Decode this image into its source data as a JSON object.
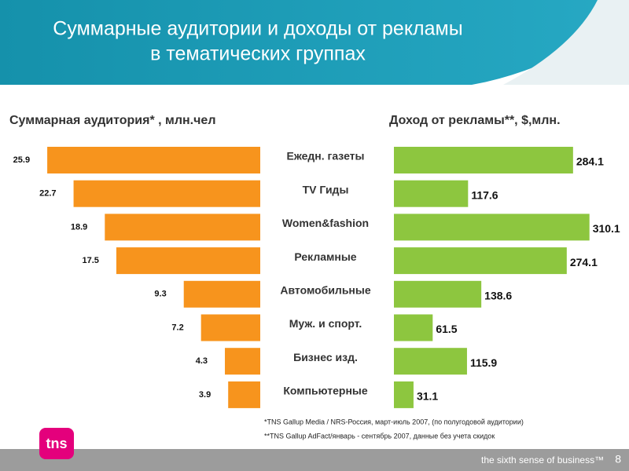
{
  "title": [
    "Суммарные аудитории и доходы от рекламы",
    "в тематических группах"
  ],
  "chart_data": [
    {
      "type": "bar",
      "title": "Суммарная аудитория* , млн.чел",
      "categories": [
        "Ежедн. газеты",
        "TV Гиды",
        "Women&fashion",
        "Рекламные",
        "Автомобильные",
        "Муж. и спорт.",
        "Бизнес изд.",
        "Компьютерные"
      ],
      "values": [
        25.9,
        22.7,
        18.9,
        17.5,
        9.3,
        7.2,
        4.3,
        3.9
      ],
      "color": "#f7941d",
      "direction": "left"
    },
    {
      "type": "bar",
      "title": "Доход от рекламы**, $,млн.",
      "values": [
        284.1,
        117.6,
        310.1,
        274.1,
        138.6,
        61.5,
        115.9,
        31.1
      ],
      "color": "#8dc63f",
      "direction": "right"
    }
  ],
  "footnotes": [
    "*TNS Gallup Media / NRS-Россия, март-июль 2007, (по полугодовой аудитории)",
    "**TNS Gallup AdFact/январь - сентябрь 2007, данные без учета скидок"
  ],
  "footer": {
    "logo": "tns",
    "tagline": "the sixth sense of business™",
    "page": 8
  }
}
